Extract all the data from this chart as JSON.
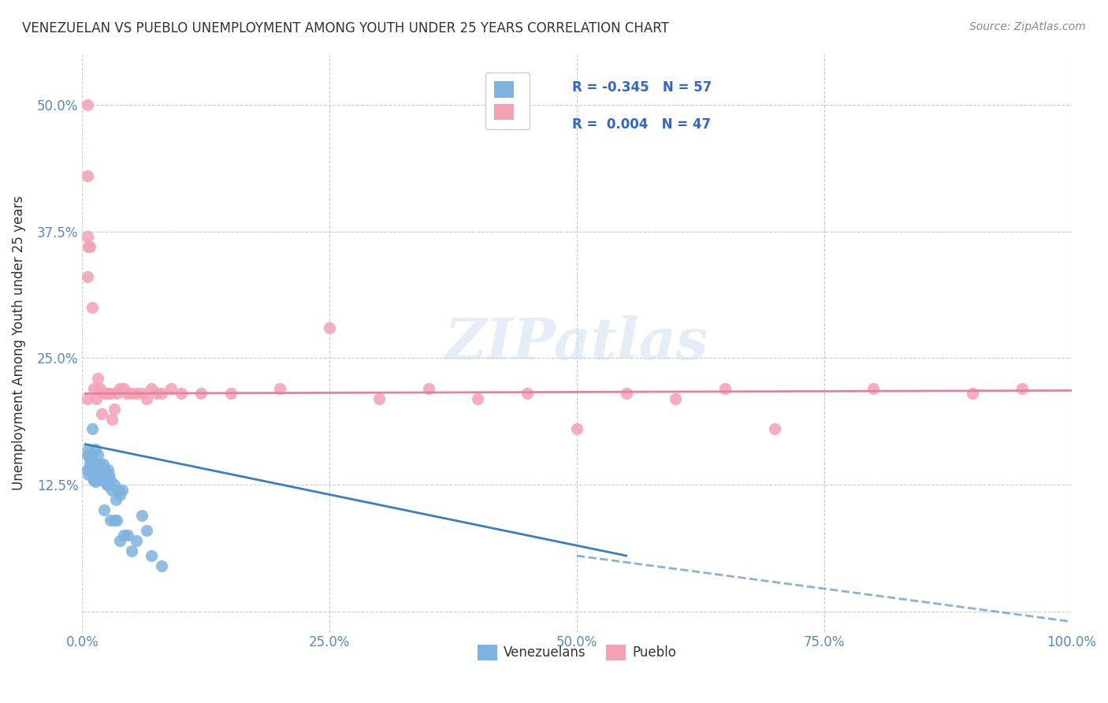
{
  "title": "VENEZUELAN VS PUEBLO UNEMPLOYMENT AMONG YOUTH UNDER 25 YEARS CORRELATION CHART",
  "source": "Source: ZipAtlas.com",
  "xlabel": "",
  "ylabel": "Unemployment Among Youth under 25 years",
  "xlim": [
    0.0,
    1.0
  ],
  "ylim": [
    -0.02,
    0.55
  ],
  "xticks": [
    0.0,
    0.25,
    0.5,
    0.75,
    1.0
  ],
  "xtick_labels": [
    "0.0%",
    "25.0%",
    "50.0%",
    "75.0%",
    "100.0%"
  ],
  "yticks": [
    0.0,
    0.125,
    0.25,
    0.375,
    0.5
  ],
  "ytick_labels": [
    "",
    "12.5%",
    "25.0%",
    "37.5%",
    "50.0%"
  ],
  "legend_R1": "R = -0.345",
  "legend_N1": "N = 57",
  "legend_R2": "R =  0.004",
  "legend_N2": "N = 47",
  "blue_color": "#7eb3e0",
  "pink_color": "#f4a0b5",
  "blue_line_color": "#3a7fc1",
  "pink_line_color": "#e87fa0",
  "title_color": "#333333",
  "axis_label_color": "#333333",
  "tick_color": "#5588cc",
  "grid_color": "#cccccc",
  "background_color": "#ffffff",
  "watermark": "ZIPatlas",
  "venezuelan_x": [
    0.005,
    0.006,
    0.007,
    0.008,
    0.009,
    0.01,
    0.01,
    0.011,
    0.012,
    0.013,
    0.014,
    0.015,
    0.016,
    0.017,
    0.018,
    0.019,
    0.02,
    0.021,
    0.022,
    0.024,
    0.025,
    0.026,
    0.027,
    0.028,
    0.03,
    0.032,
    0.034,
    0.036,
    0.038,
    0.04,
    0.005,
    0.006,
    0.007,
    0.008,
    0.009,
    0.01,
    0.011,
    0.012,
    0.013,
    0.015,
    0.016,
    0.018,
    0.02,
    0.022,
    0.025,
    0.028,
    0.032,
    0.035,
    0.038,
    0.042,
    0.046,
    0.05,
    0.055,
    0.06,
    0.065,
    0.07,
    0.08
  ],
  "venezuelan_y": [
    0.155,
    0.16,
    0.14,
    0.145,
    0.15,
    0.155,
    0.18,
    0.15,
    0.13,
    0.16,
    0.14,
    0.135,
    0.155,
    0.145,
    0.135,
    0.14,
    0.13,
    0.145,
    0.14,
    0.13,
    0.125,
    0.14,
    0.135,
    0.13,
    0.12,
    0.125,
    0.11,
    0.12,
    0.115,
    0.12,
    0.14,
    0.135,
    0.155,
    0.15,
    0.145,
    0.14,
    0.135,
    0.13,
    0.128,
    0.14,
    0.135,
    0.13,
    0.13,
    0.1,
    0.125,
    0.09,
    0.09,
    0.09,
    0.07,
    0.075,
    0.075,
    0.06,
    0.07,
    0.095,
    0.08,
    0.055,
    0.045
  ],
  "pueblo_x": [
    0.005,
    0.005,
    0.005,
    0.005,
    0.005,
    0.006,
    0.008,
    0.01,
    0.012,
    0.014,
    0.016,
    0.018,
    0.02,
    0.022,
    0.025,
    0.028,
    0.03,
    0.032,
    0.035,
    0.038,
    0.042,
    0.045,
    0.05,
    0.055,
    0.06,
    0.065,
    0.07,
    0.075,
    0.08,
    0.09,
    0.1,
    0.12,
    0.15,
    0.2,
    0.25,
    0.3,
    0.35,
    0.4,
    0.45,
    0.5,
    0.55,
    0.6,
    0.65,
    0.7,
    0.8,
    0.9,
    0.95
  ],
  "pueblo_y": [
    0.5,
    0.43,
    0.37,
    0.33,
    0.21,
    0.36,
    0.36,
    0.3,
    0.22,
    0.21,
    0.23,
    0.22,
    0.195,
    0.215,
    0.215,
    0.215,
    0.19,
    0.2,
    0.215,
    0.22,
    0.22,
    0.215,
    0.215,
    0.215,
    0.215,
    0.21,
    0.22,
    0.215,
    0.215,
    0.22,
    0.215,
    0.215,
    0.215,
    0.22,
    0.28,
    0.21,
    0.22,
    0.21,
    0.215,
    0.18,
    0.215,
    0.21,
    0.22,
    0.18,
    0.22,
    0.215,
    0.22
  ],
  "trend_blue_x_start": 0.003,
  "trend_blue_x_end": 0.55,
  "trend_blue_y_start": 0.165,
  "trend_blue_y_end": 0.055,
  "trend_pink_x_start": 0.003,
  "trend_pink_x_end": 1.0,
  "trend_pink_y_start": 0.215,
  "trend_pink_y_end": 0.218,
  "trend_dashed_x_start": 0.5,
  "trend_dashed_x_end": 1.0,
  "trend_dashed_y_start": 0.055,
  "trend_dashed_y_end": -0.01
}
